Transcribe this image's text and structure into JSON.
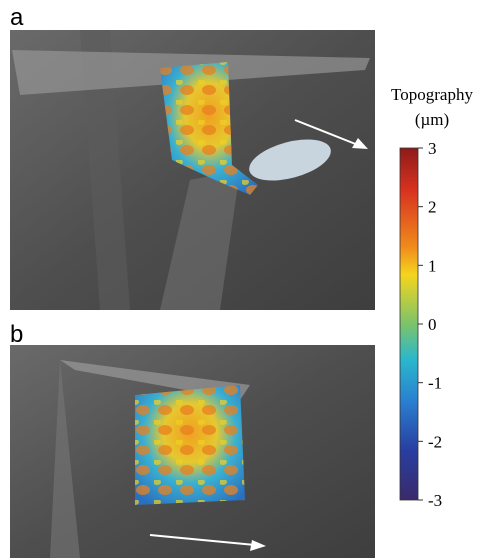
{
  "panels": [
    {
      "label": "a"
    },
    {
      "label": "b"
    }
  ],
  "colorbar": {
    "title": "Topography",
    "unit": "(µm)",
    "ticks": [
      3,
      2,
      1,
      0,
      -1,
      -2,
      -3
    ]
  }
}
